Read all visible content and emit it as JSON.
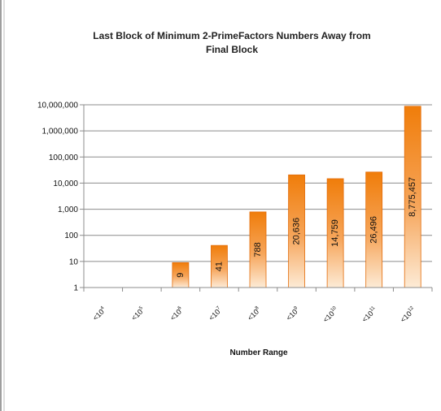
{
  "chart_data": {
    "type": "bar",
    "title_line1": "Last Block of Minimum 2-PrimeFactors Numbers Away from",
    "title_line2": "Final Block",
    "xlabel": "Number Range",
    "ylabel": "",
    "y_scale": "log",
    "ylim": [
      1,
      10000000
    ],
    "y_tick_labels": [
      "1",
      "10",
      "100",
      "1,000",
      "10,000",
      "100,000",
      "1,000,000",
      "10,000,000"
    ],
    "categories": [
      {
        "base": "<10",
        "exp": "4"
      },
      {
        "base": "<10",
        "exp": "5"
      },
      {
        "base": "<10",
        "exp": "6"
      },
      {
        "base": "<10",
        "exp": "7"
      },
      {
        "base": "<10",
        "exp": "8"
      },
      {
        "base": "<10",
        "exp": "9"
      },
      {
        "base": "<10",
        "exp": "10"
      },
      {
        "base": "<10",
        "exp": "11"
      },
      {
        "base": "<10",
        "exp": "12"
      }
    ],
    "values": [
      null,
      null,
      9,
      41,
      788,
      20636,
      14759,
      26496,
      8775457
    ],
    "data_labels": [
      "",
      "",
      "9",
      "41",
      "788",
      "20,636",
      "14,759",
      "26,496",
      "8,775,457"
    ],
    "grid": "horizontal",
    "legend": "none",
    "colors": {
      "bar_top": "#f07d0a",
      "bar_bottom": "#fdebd6",
      "bar_edge": "#e36c0a",
      "grid": "#8c8c8c",
      "axis": "#8c8c8c",
      "frame": "#7f7f7f"
    }
  }
}
